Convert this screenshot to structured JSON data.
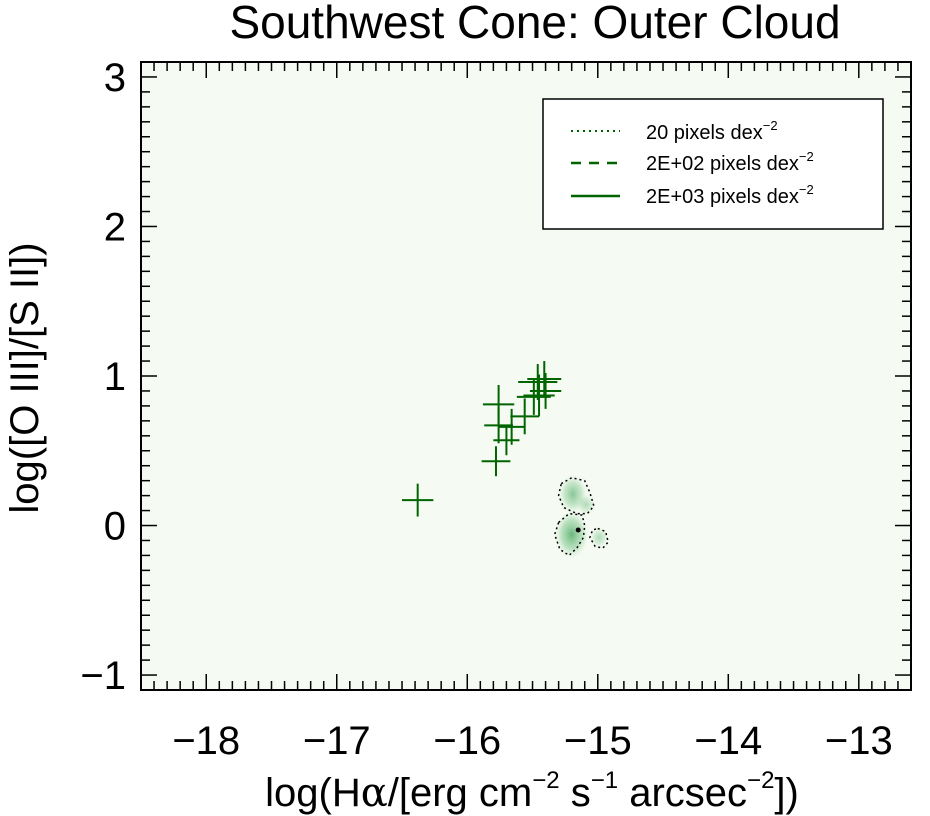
{
  "chart_data": {
    "type": "scatter",
    "title": "Southwest Cone: Outer Cloud",
    "xlabel": {
      "prefix": "log(H",
      "alpha": "α",
      "mid1": "/[erg cm",
      "sup1": "−2",
      "mid2": " s",
      "sup2": "−1",
      "mid3": " arcsec",
      "sup3": "−2",
      "suffix": "])"
    },
    "ylabel": "log([O III]/[S II])",
    "xlim": [
      -18.5,
      -12.6
    ],
    "ylim": [
      -1.1,
      3.1
    ],
    "xticks": [
      {
        "value": -18,
        "label": "−18"
      },
      {
        "value": -17,
        "label": "−17"
      },
      {
        "value": -16,
        "label": "−16"
      },
      {
        "value": -15,
        "label": "−15"
      },
      {
        "value": -14,
        "label": "−14"
      },
      {
        "value": -13,
        "label": "−13"
      }
    ],
    "yticks": [
      {
        "value": -1,
        "label": "−1"
      },
      {
        "value": 0,
        "label": "0"
      },
      {
        "value": 1,
        "label": "1"
      },
      {
        "value": 2,
        "label": "2"
      },
      {
        "value": 3,
        "label": "3"
      }
    ],
    "background_color": "#f5fbf2",
    "series_color": "#006400",
    "legend": {
      "position": "top-right",
      "entries": [
        {
          "style": "dotted",
          "label": "20 pixels dex",
          "sup": "−2"
        },
        {
          "style": "dashed",
          "label": "2E+02 pixels dex",
          "sup": "−2"
        },
        {
          "style": "solid",
          "label": "2E+03 pixels dex",
          "sup": "−2"
        }
      ]
    },
    "points": [
      {
        "x": -16.38,
        "y": 0.17,
        "xerr": 0.12,
        "yerr": 0.11
      },
      {
        "x": -15.78,
        "y": 0.43,
        "xerr": 0.11,
        "yerr": 0.1
      },
      {
        "x": -15.76,
        "y": 0.67,
        "xerr": 0.11,
        "yerr": 0.12
      },
      {
        "x": -15.76,
        "y": 0.81,
        "xerr": 0.12,
        "yerr": 0.13
      },
      {
        "x": -15.7,
        "y": 0.57,
        "xerr": 0.1,
        "yerr": 0.1
      },
      {
        "x": -15.66,
        "y": 0.66,
        "xerr": 0.1,
        "yerr": 0.12
      },
      {
        "x": -15.56,
        "y": 0.73,
        "xerr": 0.11,
        "yerr": 0.12
      },
      {
        "x": -15.49,
        "y": 0.86,
        "xerr": 0.13,
        "yerr": 0.12
      },
      {
        "x": -15.46,
        "y": 0.96,
        "xerr": 0.15,
        "yerr": 0.12
      },
      {
        "x": -15.45,
        "y": 0.87,
        "xerr": 0.12,
        "yerr": 0.14
      },
      {
        "x": -15.41,
        "y": 0.98,
        "xerr": 0.13,
        "yerr": 0.12
      },
      {
        "x": -15.4,
        "y": 0.9,
        "xerr": 0.12,
        "yerr": 0.12
      }
    ],
    "density_regions": [
      {
        "x": -15.19,
        "y": 0.21,
        "rx": 0.11,
        "ry": 0.13,
        "level": 0.55
      },
      {
        "x": -15.09,
        "y": 0.14,
        "rx": 0.07,
        "ry": 0.07,
        "level": 0.35
      },
      {
        "x": -15.2,
        "y": -0.06,
        "rx": 0.13,
        "ry": 0.16,
        "level": 0.7
      },
      {
        "x": -14.99,
        "y": -0.08,
        "rx": 0.07,
        "ry": 0.07,
        "level": 0.35
      }
    ],
    "contours": [
      {
        "level": "20 pixels dex−2",
        "style": "dotted",
        "path": [
          [
            -15.28,
            0.28
          ],
          [
            -15.2,
            0.32
          ],
          [
            -15.1,
            0.3
          ],
          [
            -15.06,
            0.22
          ],
          [
            -15.03,
            0.13
          ],
          [
            -15.08,
            0.08
          ],
          [
            -15.16,
            0.08
          ],
          [
            -15.26,
            0.12
          ],
          [
            -15.3,
            0.2
          ],
          [
            -15.28,
            0.28
          ]
        ]
      },
      {
        "level": "20 pixels dex−2",
        "style": "dotted",
        "path": [
          [
            -15.3,
            0.02
          ],
          [
            -15.22,
            0.08
          ],
          [
            -15.12,
            0.07
          ],
          [
            -15.1,
            0.0
          ],
          [
            -15.11,
            -0.08
          ],
          [
            -15.16,
            -0.15
          ],
          [
            -15.22,
            -0.2
          ],
          [
            -15.29,
            -0.16
          ],
          [
            -15.33,
            -0.06
          ],
          [
            -15.3,
            0.02
          ]
        ]
      },
      {
        "level": "20 pixels dex−2",
        "style": "dotted",
        "path": [
          [
            -15.0,
            -0.02
          ],
          [
            -14.94,
            -0.04
          ],
          [
            -14.92,
            -0.11
          ],
          [
            -14.96,
            -0.15
          ],
          [
            -15.02,
            -0.14
          ],
          [
            -15.06,
            -0.08
          ],
          [
            -15.04,
            -0.03
          ],
          [
            -15.0,
            -0.02
          ]
        ]
      }
    ],
    "peak_marker": {
      "x": -15.15,
      "y": -0.03
    }
  }
}
